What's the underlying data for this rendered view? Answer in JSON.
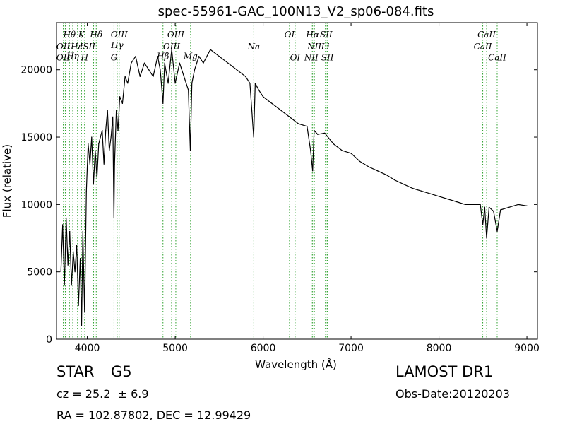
{
  "chart_data": {
    "type": "line",
    "title": "spec-55961-GAC_100N13_V2_sp06-084.fits",
    "xlabel": "Wavelength (Å)",
    "ylabel": "Flux (relative)",
    "xlim": [
      3650,
      9120
    ],
    "ylim": [
      0,
      23500
    ],
    "xticks": [
      4000,
      5000,
      6000,
      7000,
      8000,
      9000
    ],
    "yticks": [
      0,
      5000,
      10000,
      15000,
      20000
    ],
    "grid": false,
    "series": [
      {
        "color": "#000000",
        "x": [
          3700,
          3720,
          3740,
          3760,
          3780,
          3800,
          3820,
          3840,
          3860,
          3880,
          3900,
          3920,
          3935,
          3950,
          3970,
          3990,
          4010,
          4030,
          4050,
          4070,
          4090,
          4110,
          4130,
          4150,
          4170,
          4190,
          4210,
          4230,
          4250,
          4270,
          4290,
          4303,
          4310,
          4330,
          4350,
          4370,
          4400,
          4430,
          4460,
          4500,
          4550,
          4600,
          4650,
          4700,
          4750,
          4800,
          4830,
          4861,
          4880,
          4920,
          4960,
          5000,
          5050,
          5100,
          5150,
          5172,
          5190,
          5220,
          5270,
          5320,
          5400,
          5500,
          5600,
          5700,
          5800,
          5850,
          5893,
          5910,
          5950,
          6000,
          6100,
          6200,
          6300,
          6400,
          6500,
          6540,
          6563,
          6580,
          6620,
          6700,
          6800,
          6900,
          7000,
          7100,
          7200,
          7300,
          7400,
          7500,
          7600,
          7700,
          7800,
          7900,
          8000,
          8100,
          8200,
          8300,
          8400,
          8470,
          8498,
          8520,
          8542,
          8570,
          8620,
          8662,
          8700,
          8800,
          8900,
          9000
        ],
        "y": [
          5000,
          8500,
          4000,
          9000,
          5500,
          8000,
          4000,
          6500,
          5000,
          7000,
          2500,
          6000,
          1000,
          8000,
          2000,
          11000,
          14500,
          13000,
          15000,
          11500,
          14000,
          12000,
          14500,
          15000,
          15500,
          13000,
          15500,
          17000,
          14000,
          15000,
          16500,
          9000,
          13000,
          17000,
          15500,
          18000,
          17500,
          19500,
          19000,
          20500,
          21000,
          19500,
          20500,
          20000,
          19500,
          21000,
          20000,
          17500,
          20500,
          19000,
          21500,
          19000,
          20500,
          19500,
          18500,
          14000,
          19000,
          20000,
          21000,
          20500,
          21500,
          21000,
          20500,
          20000,
          19500,
          19000,
          15000,
          19000,
          18500,
          18000,
          17500,
          17000,
          16500,
          16000,
          15800,
          14000,
          12500,
          15500,
          15200,
          15300,
          14500,
          14000,
          13800,
          13200,
          12800,
          12500,
          12200,
          11800,
          11500,
          11200,
          11000,
          10800,
          10600,
          10400,
          10200,
          10000,
          10000,
          10000,
          8500,
          9800,
          7500,
          9800,
          9500,
          8000,
          9600,
          9800,
          10000,
          9900
        ]
      }
    ],
    "lines": [
      {
        "x": 3727,
        "color": "#2ca02c"
      },
      {
        "x": 3750,
        "color": "#2ca02c"
      },
      {
        "x": 3797,
        "color": "#2ca02c"
      },
      {
        "x": 3835,
        "color": "#2ca02c"
      },
      {
        "x": 3889,
        "color": "#2ca02c"
      },
      {
        "x": 3934,
        "color": "#2ca02c"
      },
      {
        "x": 3969,
        "color": "#2ca02c"
      },
      {
        "x": 4072,
        "color": "#2ca02c"
      },
      {
        "x": 4102,
        "color": "#2ca02c"
      },
      {
        "x": 4304,
        "color": "#2ca02c"
      },
      {
        "x": 4340,
        "color": "#2ca02c"
      },
      {
        "x": 4363,
        "color": "#2ca02c"
      },
      {
        "x": 4861,
        "color": "#2ca02c"
      },
      {
        "x": 4959,
        "color": "#2ca02c"
      },
      {
        "x": 5007,
        "color": "#2ca02c"
      },
      {
        "x": 5175,
        "color": "#2ca02c"
      },
      {
        "x": 5894,
        "color": "#2ca02c"
      },
      {
        "x": 6300,
        "color": "#2ca02c"
      },
      {
        "x": 6364,
        "color": "#2ca02c"
      },
      {
        "x": 6548,
        "color": "#2ca02c"
      },
      {
        "x": 6563,
        "color": "#2ca02c"
      },
      {
        "x": 6583,
        "color": "#2ca02c"
      },
      {
        "x": 6708,
        "color": "#2ca02c"
      },
      {
        "x": 6717,
        "color": "#2ca02c"
      },
      {
        "x": 6731,
        "color": "#2ca02c"
      },
      {
        "x": 8498,
        "color": "#2ca02c"
      },
      {
        "x": 8542,
        "color": "#2ca02c"
      },
      {
        "x": 8662,
        "color": "#2ca02c"
      }
    ],
    "annotations": [
      {
        "text": "Hθ",
        "x": 3797,
        "y": 22400
      },
      {
        "text": "K",
        "x": 3934,
        "y": 22400
      },
      {
        "text": "Hδ",
        "x": 4102,
        "y": 22400
      },
      {
        "text": "OIII",
        "x": 4363,
        "y": 22400
      },
      {
        "text": "OIII",
        "x": 5007,
        "y": 22400
      },
      {
        "text": "OI",
        "x": 6300,
        "y": 22400
      },
      {
        "text": "Hα",
        "x": 6563,
        "y": 22400
      },
      {
        "text": "SII",
        "x": 6717,
        "y": 22400
      },
      {
        "text": "CaII",
        "x": 8542,
        "y": 22400
      },
      {
        "text": "OII",
        "x": 3727,
        "y": 21500
      },
      {
        "text": "Hε",
        "x": 3880,
        "y": 21500
      },
      {
        "text": "Hγ",
        "x": 4340,
        "y": 21600
      },
      {
        "text": "OIII",
        "x": 4959,
        "y": 21500
      },
      {
        "text": "NII",
        "x": 6583,
        "y": 21500
      },
      {
        "text": "Li",
        "x": 6708,
        "y": 21500
      },
      {
        "text": "CaII",
        "x": 8498,
        "y": 21500
      },
      {
        "text": "ISII",
        "x": 4002,
        "y": 21500
      },
      {
        "text": "OII",
        "x": 3727,
        "y": 20700
      },
      {
        "text": "Hη",
        "x": 3835,
        "y": 20800
      },
      {
        "text": "H",
        "x": 3969,
        "y": 20700
      },
      {
        "text": "G",
        "x": 4304,
        "y": 20700
      },
      {
        "text": "Hβ",
        "x": 4861,
        "y": 20800
      },
      {
        "text": "Mg",
        "x": 5175,
        "y": 20800
      },
      {
        "text": "Na",
        "x": 5894,
        "y": 21500
      },
      {
        "text": "OI",
        "x": 6364,
        "y": 20700
      },
      {
        "text": "NII",
        "x": 6548,
        "y": 20700
      },
      {
        "text": "SII",
        "x": 6731,
        "y": 20700
      },
      {
        "text": "CaII",
        "x": 8662,
        "y": 20700
      }
    ]
  },
  "info": {
    "object_class": "STAR",
    "subclass": "G5",
    "survey": "LAMOST DR1",
    "cz": "cz = 25.2  ± 6.9",
    "obs_date": "Obs-Date:20120203",
    "coords": "RA = 102.87802, DEC = 12.99429"
  }
}
